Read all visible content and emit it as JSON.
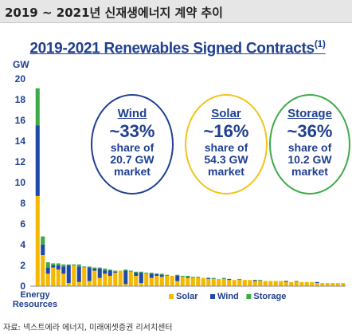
{
  "header": {
    "title": "2019 ~ 2021년 신재생에너지 계약 추이"
  },
  "chart": {
    "title": "2019-2021 Renewables Signed Contracts",
    "title_note": "(1)",
    "unit": "GW"
  },
  "callouts": [
    {
      "name": "Wind",
      "share": "~33%",
      "line1": "share of",
      "line2": "20.7 GW",
      "line3": "market",
      "color": "#1f3f8f"
    },
    {
      "name": "Solar",
      "share": "~16%",
      "line1": "share of",
      "line2": "54.3 GW",
      "line3": "market",
      "color": "#f0c419"
    },
    {
      "name": "Storage",
      "share": "~36%",
      "line1": "share of",
      "line2": "10.2 GW",
      "line3": "market",
      "color": "#3daa48"
    }
  ],
  "source": "자료: 넥스트에라 에너지, 미래에셋증권 리서치센터",
  "colors": {
    "solar": "#f5b800",
    "wind": "#1f49a8",
    "storage": "#3daa48"
  },
  "chart_data": {
    "type": "bar",
    "stacked": true,
    "title": "2019-2021 Renewables Signed Contracts",
    "ylabel": "GW",
    "ylim": [
      0,
      20
    ],
    "yticks": [
      0,
      2,
      4,
      6,
      8,
      10,
      12,
      14,
      16,
      18,
      20
    ],
    "x_label": "Energy Resources",
    "legend": [
      "Solar",
      "Wind",
      "Storage"
    ],
    "legend_position": "bottom",
    "series": [
      {
        "name": "Solar",
        "color": "#f5b800",
        "values": [
          8.7,
          3.0,
          1.2,
          1.8,
          1.6,
          1.2,
          0.3,
          2.0,
          0.4,
          1.8,
          0.5,
          1.5,
          0.8,
          1.2,
          1.0,
          1.3,
          1.5,
          0.2,
          1.4,
          1.0,
          0.3,
          1.2,
          0.8,
          1.0,
          0.9,
          1.0,
          1.0,
          0.5,
          0.9,
          0.8,
          0.8,
          0.8,
          0.8,
          0.7,
          0.7,
          0.7,
          0.7,
          0.6,
          0.6,
          0.6,
          0.6,
          0.6,
          0.5,
          0.5,
          0.5,
          0.5,
          0.5,
          0.5,
          0.4,
          0.4,
          0.4,
          0.4,
          0.4,
          0.4,
          0.3,
          0.3,
          0.3,
          0.3,
          0.3,
          0.3
        ]
      },
      {
        "name": "Wind",
        "color": "#1f49a8",
        "values": [
          6.8,
          1.0,
          0.6,
          0.2,
          0.4,
          0.7,
          1.7,
          0.0,
          1.5,
          0.0,
          1.3,
          0.2,
          0.9,
          0.3,
          0.5,
          0.1,
          0.0,
          1.3,
          0.0,
          0.3,
          1.0,
          0.0,
          0.4,
          0.2,
          0.2,
          0.0,
          0.0,
          0.5,
          0.0,
          0.1,
          0.0,
          0.0,
          0.0,
          0.1,
          0.0,
          0.0,
          0.0,
          0.1,
          0.0,
          0.0,
          0.0,
          0.0,
          0.1,
          0.0,
          0.0,
          0.0,
          0.0,
          0.0,
          0.1,
          0.0,
          0.0,
          0.0,
          0.0,
          0.0,
          0.1,
          0.0,
          0.0,
          0.0,
          0.0,
          0.0
        ]
      },
      {
        "name": "Storage",
        "color": "#3daa48",
        "values": [
          3.6,
          0.8,
          0.5,
          0.2,
          0.2,
          0.2,
          0.1,
          0.1,
          0.2,
          0.1,
          0.1,
          0.1,
          0.1,
          0.2,
          0.1,
          0.1,
          0.0,
          0.1,
          0.1,
          0.1,
          0.1,
          0.1,
          0.1,
          0.0,
          0.1,
          0.1,
          0.0,
          0.1,
          0.1,
          0.1,
          0.1,
          0.1,
          0.0,
          0.0,
          0.1,
          0.0,
          0.1,
          0.0,
          0.0,
          0.1,
          0.0,
          0.0,
          0.0,
          0.1,
          0.0,
          0.0,
          0.0,
          0.0,
          0.0,
          0.0,
          0.1,
          0.0,
          0.0,
          0.0,
          0.0,
          0.0,
          0.0,
          0.0,
          0.0,
          0.0
        ]
      }
    ],
    "annotations": [
      "Wind ~33% share of 20.7 GW market",
      "Solar ~16% share of 54.3 GW market",
      "Storage ~36% share of 10.2 GW market"
    ]
  }
}
